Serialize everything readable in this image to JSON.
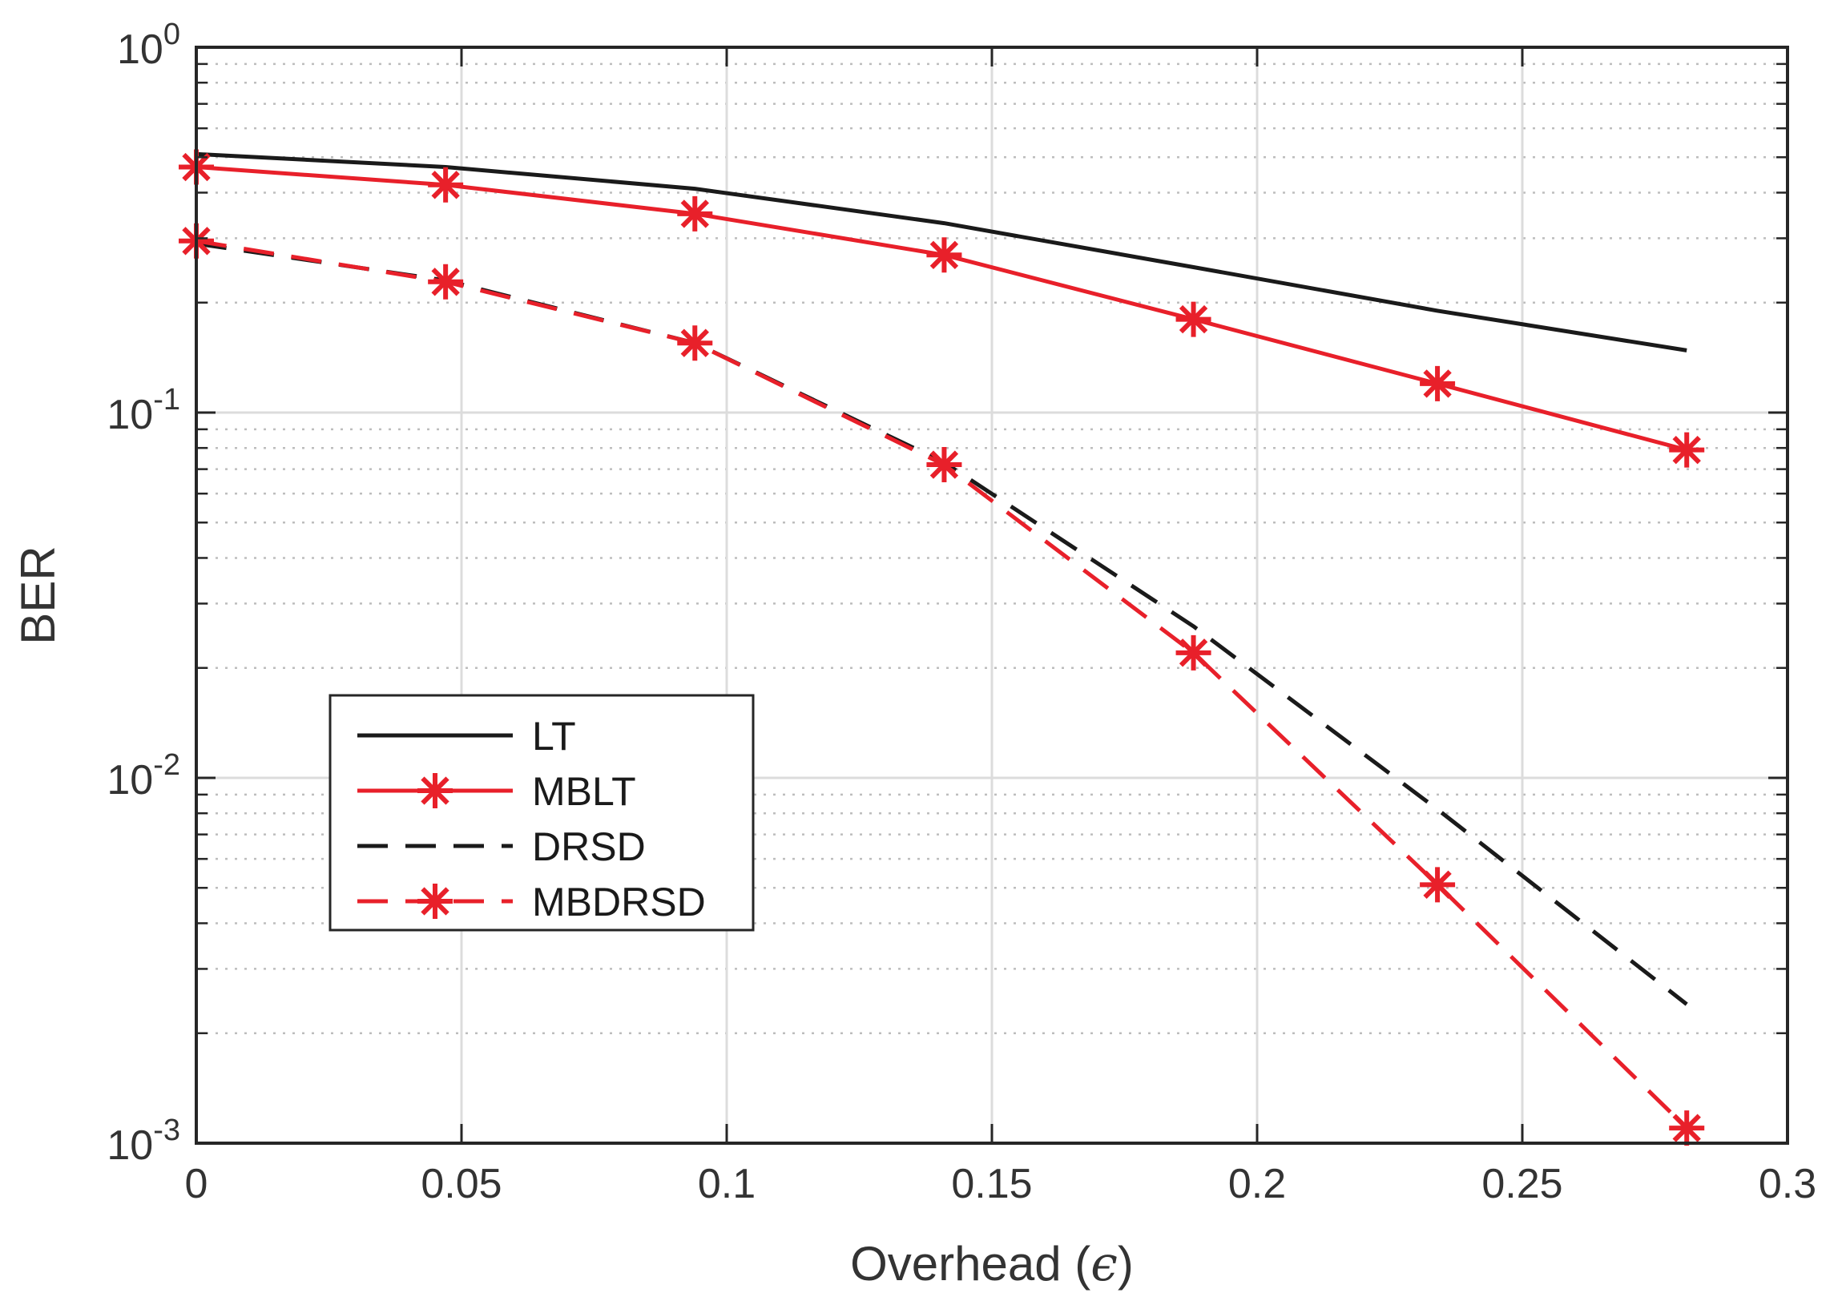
{
  "chart_data": {
    "type": "line",
    "title": "",
    "xlabel": "Overhead (",
    "xlabel_symbol": "ϵ",
    "xlabel_close": ")",
    "ylabel": "BER",
    "yscale": "log",
    "xlim": [
      0,
      0.3
    ],
    "ylim": [
      0.001,
      1
    ],
    "grid": true,
    "x_ticks": [
      0,
      0.05,
      0.1,
      0.15,
      0.2,
      0.25,
      0.3
    ],
    "x_tick_labels": [
      "0",
      "0.05",
      "0.1",
      "0.15",
      "0.2",
      "0.25",
      "0.3"
    ],
    "y_ticks": [
      {
        "value": 1,
        "base": "10",
        "exp": "0"
      },
      {
        "value": 0.1,
        "base": "10",
        "exp": "-1"
      },
      {
        "value": 0.01,
        "base": "10",
        "exp": "-2"
      },
      {
        "value": 0.001,
        "base": "10",
        "exp": "-3"
      }
    ],
    "legend_position": "lower-left",
    "series": [
      {
        "name": "LT",
        "color": "#1a1a1a",
        "dash": "solid",
        "marker": "none",
        "x": [
          0,
          0.047,
          0.094,
          0.141,
          0.188,
          0.234,
          0.281
        ],
        "y": [
          0.51,
          0.47,
          0.41,
          0.33,
          0.25,
          0.19,
          0.148
        ]
      },
      {
        "name": "MBLT",
        "color": "#e8202a",
        "dash": "solid",
        "marker": "asterisk",
        "x": [
          0,
          0.047,
          0.094,
          0.141,
          0.188,
          0.234,
          0.281
        ],
        "y": [
          0.47,
          0.42,
          0.35,
          0.27,
          0.18,
          0.12,
          0.079
        ]
      },
      {
        "name": "DRSD",
        "color": "#1a1a1a",
        "dash": "dashed",
        "marker": "none",
        "x": [
          0,
          0.047,
          0.094,
          0.141,
          0.188,
          0.234,
          0.281
        ],
        "y": [
          0.29,
          0.23,
          0.155,
          0.073,
          0.026,
          0.0082,
          0.0024
        ]
      },
      {
        "name": "MBDRSD",
        "color": "#e8202a",
        "dash": "dashed",
        "marker": "asterisk",
        "x": [
          0,
          0.047,
          0.094,
          0.141,
          0.188,
          0.234,
          0.281
        ],
        "y": [
          0.295,
          0.228,
          0.155,
          0.072,
          0.022,
          0.0051,
          0.0011
        ]
      }
    ]
  }
}
